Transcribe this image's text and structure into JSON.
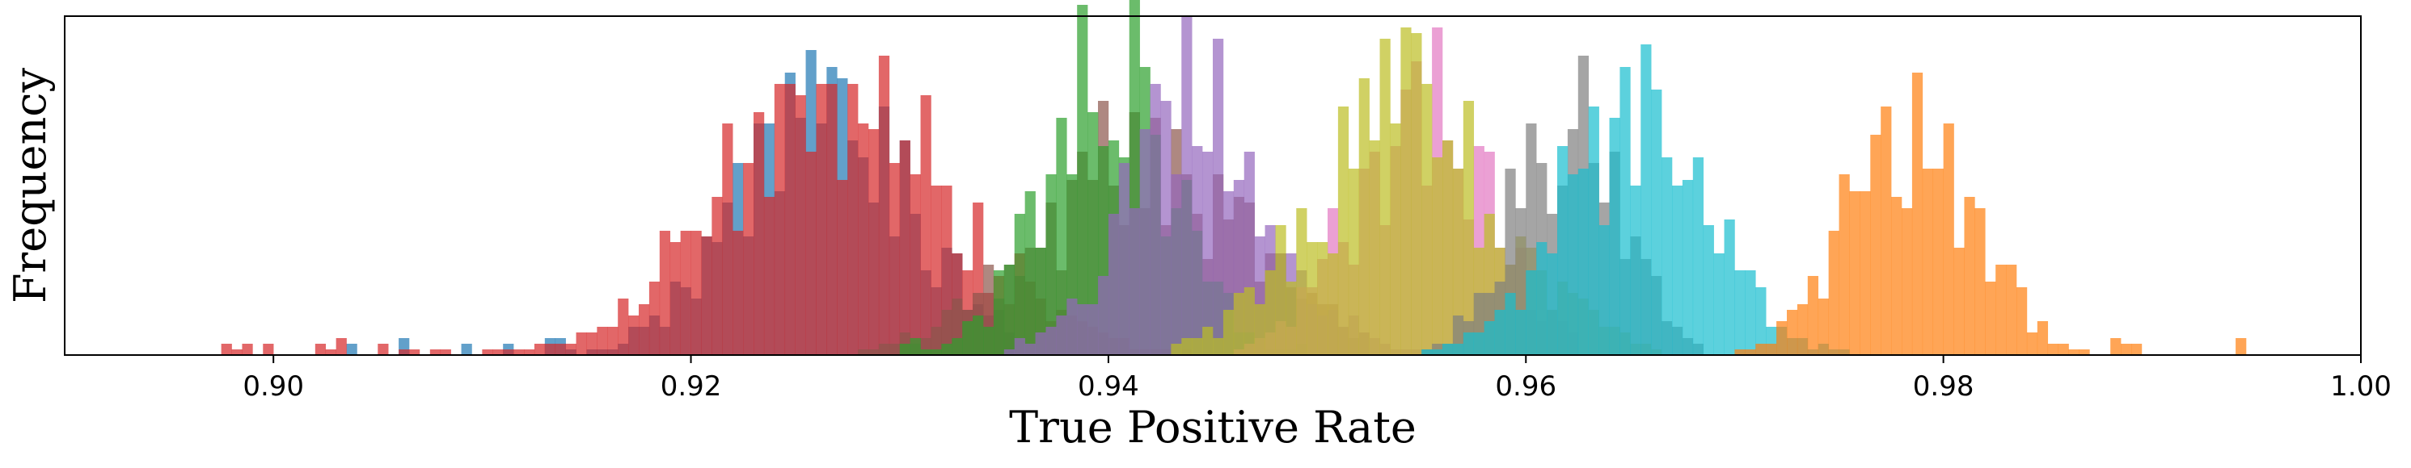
{
  "chart_data": {
    "type": "histogram",
    "title": "",
    "xlabel": "True Positive Rate",
    "ylabel": "Frequency",
    "xlim": [
      0.89,
      1.0
    ],
    "ylim": [
      0,
      60
    ],
    "xticks": [
      0.9,
      0.92,
      0.94,
      0.96,
      0.98,
      1.0
    ],
    "xtick_labels": [
      "0.90",
      "0.92",
      "0.94",
      "0.96",
      "0.98",
      "1.00"
    ],
    "yticks_shown": false,
    "grid": false,
    "legend": false,
    "bin_width": 0.0005,
    "series": [
      {
        "color": "#1f77b4",
        "mean": 0.9265,
        "std": 0.0042,
        "peak": 43,
        "min": 0.903,
        "max": 0.935,
        "seed": 1
      },
      {
        "color": "#d62728",
        "mean": 0.9268,
        "std": 0.0055,
        "peak": 50,
        "min": 0.897,
        "max": 0.944,
        "seed": 2
      },
      {
        "color": "#8c564b",
        "mean": 0.9415,
        "std": 0.005,
        "peak": 36,
        "min": 0.928,
        "max": 0.952,
        "seed": 3
      },
      {
        "color": "#2ca02c",
        "mean": 0.94,
        "std": 0.003,
        "peak": 52,
        "min": 0.93,
        "max": 0.95,
        "seed": 4
      },
      {
        "color": "#9467bd",
        "mean": 0.9445,
        "std": 0.0035,
        "peak": 48,
        "min": 0.935,
        "max": 0.955,
        "seed": 5
      },
      {
        "color": "#e377c2",
        "mean": 0.955,
        "std": 0.0032,
        "peak": 48,
        "min": 0.946,
        "max": 0.962,
        "seed": 6
      },
      {
        "color": "#bcbd22",
        "mean": 0.9545,
        "std": 0.0045,
        "peak": 44,
        "min": 0.943,
        "max": 0.966,
        "seed": 7
      },
      {
        "color": "#7f7f7f",
        "mean": 0.962,
        "std": 0.0025,
        "peak": 48,
        "min": 0.955,
        "max": 0.968,
        "seed": 8
      },
      {
        "color": "#17becf",
        "mean": 0.965,
        "std": 0.0035,
        "peak": 45,
        "min": 0.955,
        "max": 0.975,
        "seed": 9
      },
      {
        "color": "#ff7f0e",
        "mean": 0.9785,
        "std": 0.003,
        "peak": 43,
        "min": 0.97,
        "max": 0.994,
        "seed": 10
      }
    ]
  }
}
